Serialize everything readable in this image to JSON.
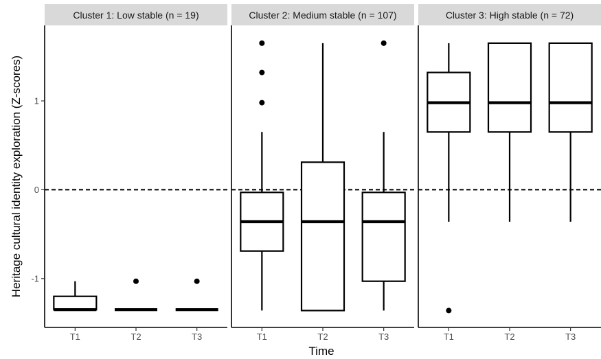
{
  "chart_data": {
    "type": "boxplot",
    "xlabel": "Time",
    "ylabel": "Heritage cultural identity exploration (Z-scores)",
    "ylim": [
      -1.55,
      1.85
    ],
    "yticks": [
      -1,
      0,
      1
    ],
    "reference_line": {
      "y": 0,
      "style": "dashed"
    },
    "categories": [
      "T1",
      "T2",
      "T3"
    ],
    "panels": [
      {
        "title": "Cluster 1: Low stable (n = 19)",
        "boxes": [
          {
            "x": "T1",
            "lower_whisker": -1.35,
            "q1": -1.35,
            "median": -1.35,
            "q3": -1.2,
            "upper_whisker": -1.03,
            "outliers": []
          },
          {
            "x": "T2",
            "lower_whisker": -1.35,
            "q1": -1.35,
            "median": -1.35,
            "q3": -1.35,
            "upper_whisker": -1.35,
            "outliers": [
              -1.03
            ]
          },
          {
            "x": "T3",
            "lower_whisker": -1.35,
            "q1": -1.35,
            "median": -1.35,
            "q3": -1.35,
            "upper_whisker": -1.35,
            "outliers": [
              -1.03
            ]
          }
        ]
      },
      {
        "title": "Cluster 2: Medium stable (n = 107)",
        "boxes": [
          {
            "x": "T1",
            "lower_whisker": -1.36,
            "q1": -0.69,
            "median": -0.36,
            "q3": -0.03,
            "upper_whisker": 0.65,
            "outliers": [
              0.98,
              1.32,
              1.65
            ]
          },
          {
            "x": "T2",
            "lower_whisker": -1.36,
            "q1": -1.36,
            "median": -0.36,
            "q3": 0.31,
            "upper_whisker": 1.65,
            "outliers": []
          },
          {
            "x": "T3",
            "lower_whisker": -1.36,
            "q1": -1.03,
            "median": -0.36,
            "q3": -0.03,
            "upper_whisker": 0.65,
            "outliers": [
              1.65
            ]
          }
        ]
      },
      {
        "title": "Cluster 3: High stable (n = 72)",
        "boxes": [
          {
            "x": "T1",
            "lower_whisker": -0.36,
            "q1": 0.65,
            "median": 0.98,
            "q3": 1.32,
            "upper_whisker": 1.65,
            "outliers": [
              -1.36
            ]
          },
          {
            "x": "T2",
            "lower_whisker": -0.36,
            "q1": 0.65,
            "median": 0.98,
            "q3": 1.65,
            "upper_whisker": 1.65,
            "outliers": []
          },
          {
            "x": "T3",
            "lower_whisker": -0.36,
            "q1": 0.65,
            "median": 0.98,
            "q3": 1.65,
            "upper_whisker": 1.65,
            "outliers": []
          }
        ]
      }
    ],
    "grid": false,
    "legend": "none"
  }
}
